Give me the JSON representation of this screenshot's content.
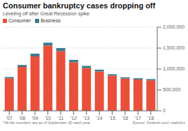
{
  "chart_data": {
    "type": "bar",
    "title": "Consumer bankruptcy cases dropping off",
    "subtitle": "Leveling off after Great Recession spike",
    "categories": [
      "'07",
      "'08",
      "'09",
      "'10",
      "'11",
      "'12",
      "'13",
      "'14",
      "'15",
      "'16",
      "'17",
      "'18"
    ],
    "series": [
      {
        "name": "Consumer",
        "color": "#e8503a",
        "values": [
          780000,
          1050000,
          1300000,
          1560000,
          1430000,
          1160000,
          1020000,
          940000,
          840000,
          770000,
          750000,
          730000
        ]
      },
      {
        "name": "Business",
        "color": "#3d7a8a",
        "values": [
          28000,
          45000,
          65000,
          70000,
          70000,
          55000,
          55000,
          45000,
          35000,
          28000,
          28000,
          28000
        ]
      }
    ],
    "stacked": true,
    "ylim": [
      0,
      2000000
    ],
    "yticks": [
      0,
      {
        "value": 500000,
        "label": "500,000"
      },
      {
        "value": 1000000,
        "label": "1,000,000"
      },
      {
        "value": 1500000,
        "label": "1,500,000"
      },
      {
        "value": 2000000,
        "label": "2,000,000"
      }
    ],
    "grid": true,
    "legend": "upper left",
    "annotations": [
      "*All the numbers are as of September 30 each year.",
      "Source: Federal court statistics"
    ]
  }
}
